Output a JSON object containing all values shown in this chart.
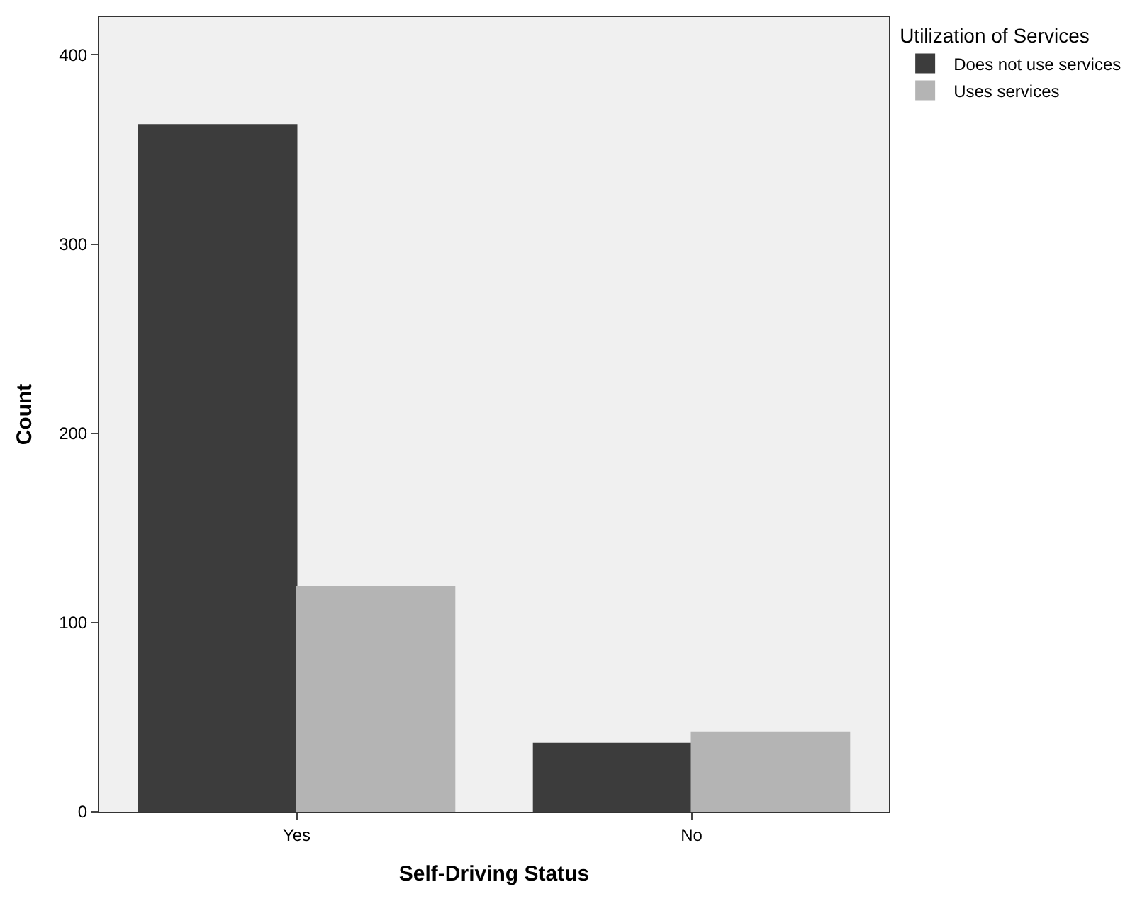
{
  "chart_data": {
    "type": "bar",
    "xlabel": "Self-Driving Status",
    "ylabel": "Count",
    "legend_title": "Utilization of Services",
    "categories": [
      "Yes",
      "No"
    ],
    "series": [
      {
        "name": "Does not use services",
        "color": "#3c3c3c",
        "values": [
          363,
          36
        ]
      },
      {
        "name": "Uses services",
        "color": "#b4b4b4",
        "values": [
          119,
          42
        ]
      }
    ],
    "ylim": [
      0,
      420
    ],
    "yticks": [
      0,
      100,
      200,
      300,
      400
    ],
    "grid": false,
    "legend": "top right"
  }
}
